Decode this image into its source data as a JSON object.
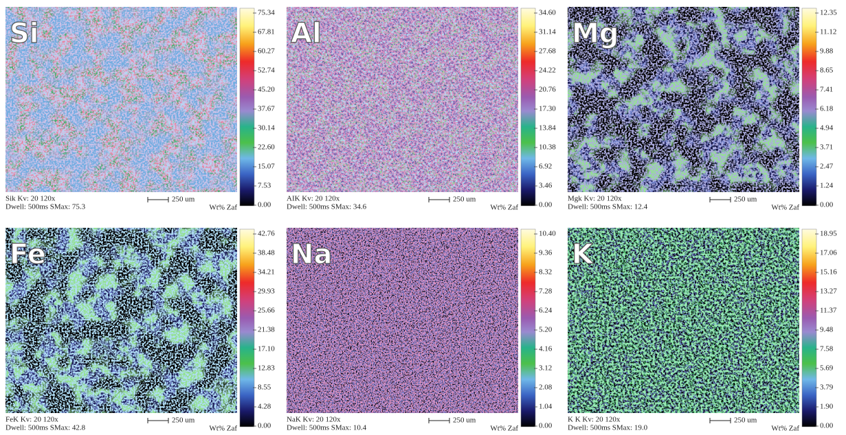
{
  "panels": [
    {
      "element": "Si",
      "ticks": [
        "75.34",
        "67.81",
        "60.27",
        "52.74",
        "45.20",
        "37.67",
        "30.14",
        "22.60",
        "15.07",
        "7.53",
        "0.00"
      ],
      "caption_line1": "Sik  Kv: 20  120x",
      "caption_line2": "Dwell: 500ms SMax: 75.3",
      "scale": "250 um",
      "units": "Wt% Zaf"
    },
    {
      "element": "Al",
      "ticks": [
        "34.60",
        "31.14",
        "27.68",
        "24.22",
        "20.76",
        "17.30",
        "13.84",
        "10.38",
        "6.92",
        "3.46",
        "0.00"
      ],
      "caption_line1": "AIK  Kv: 20  120x",
      "caption_line2": "Dwell: 500ms SMax: 34.6",
      "scale": "250 um",
      "units": "Wt% Zaf"
    },
    {
      "element": "Mg",
      "ticks": [
        "12.35",
        "11.12",
        "9.88",
        "8.65",
        "7.41",
        "6.18",
        "4.94",
        "3.71",
        "2.47",
        "1.24",
        "0.00"
      ],
      "caption_line1": "Mgk  Kv: 20  120x",
      "caption_line2": "Dwell: 500ms SMax: 12.4",
      "scale": "250 um",
      "units": "Wt% Zaf"
    },
    {
      "element": "Fe",
      "ticks": [
        "42.76",
        "38.48",
        "34.21",
        "29.93",
        "25.66",
        "21.38",
        "17.10",
        "12.83",
        "8.55",
        "4.28",
        "0.00"
      ],
      "caption_line1": "FeK  Kv: 20  120x",
      "caption_line2": "Dwell: 500ms SMax: 42.8",
      "scale": "250 um",
      "units": "Wt% Zaf"
    },
    {
      "element": "Na",
      "ticks": [
        "10.40",
        "9.36",
        "8.32",
        "7.28",
        "6.24",
        "5.20",
        "4.16",
        "3.12",
        "2.08",
        "1.04",
        "0.00"
      ],
      "caption_line1": "NaK  Kv: 20  120x",
      "caption_line2": "Dwell: 500ms SMax: 10.4",
      "scale": "250 um",
      "units": "Wt% Zaf"
    },
    {
      "element": "K",
      "ticks": [
        "18.95",
        "17.06",
        "15.16",
        "13.27",
        "11.37",
        "9.48",
        "7.58",
        "5.69",
        "3.79",
        "1.90",
        "0.00"
      ],
      "caption_line1": "K K  Kv: 20  120x",
      "caption_line2": "Dwell: 500ms SMax: 19.0",
      "scale": "250 um",
      "units": "Wt% Zaf"
    }
  ]
}
